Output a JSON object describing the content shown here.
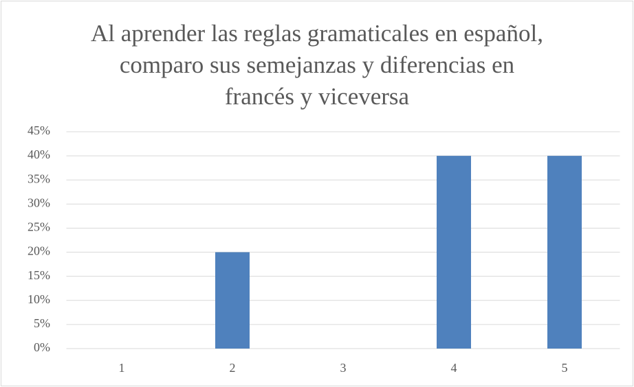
{
  "chart_data": {
    "type": "bar",
    "title": "Al aprender las reglas gramaticales en español, comparo sus semejanzas y diferencias en francés y viceversa",
    "categories": [
      "1",
      "2",
      "3",
      "4",
      "5"
    ],
    "values": [
      0,
      20,
      0,
      40,
      40
    ],
    "color": "#4f81bd",
    "ylim": [
      0,
      45
    ],
    "yticks": [
      {
        "value": 0,
        "label": "0%"
      },
      {
        "value": 5,
        "label": "5%"
      },
      {
        "value": 10,
        "label": "10%"
      },
      {
        "value": 15,
        "label": "15%"
      },
      {
        "value": 20,
        "label": "20%"
      },
      {
        "value": 25,
        "label": "25%"
      },
      {
        "value": 30,
        "label": "30%"
      },
      {
        "value": 35,
        "label": "35%"
      },
      {
        "value": 40,
        "label": "40%"
      },
      {
        "value": 45,
        "label": "45%"
      }
    ],
    "grid": true
  }
}
